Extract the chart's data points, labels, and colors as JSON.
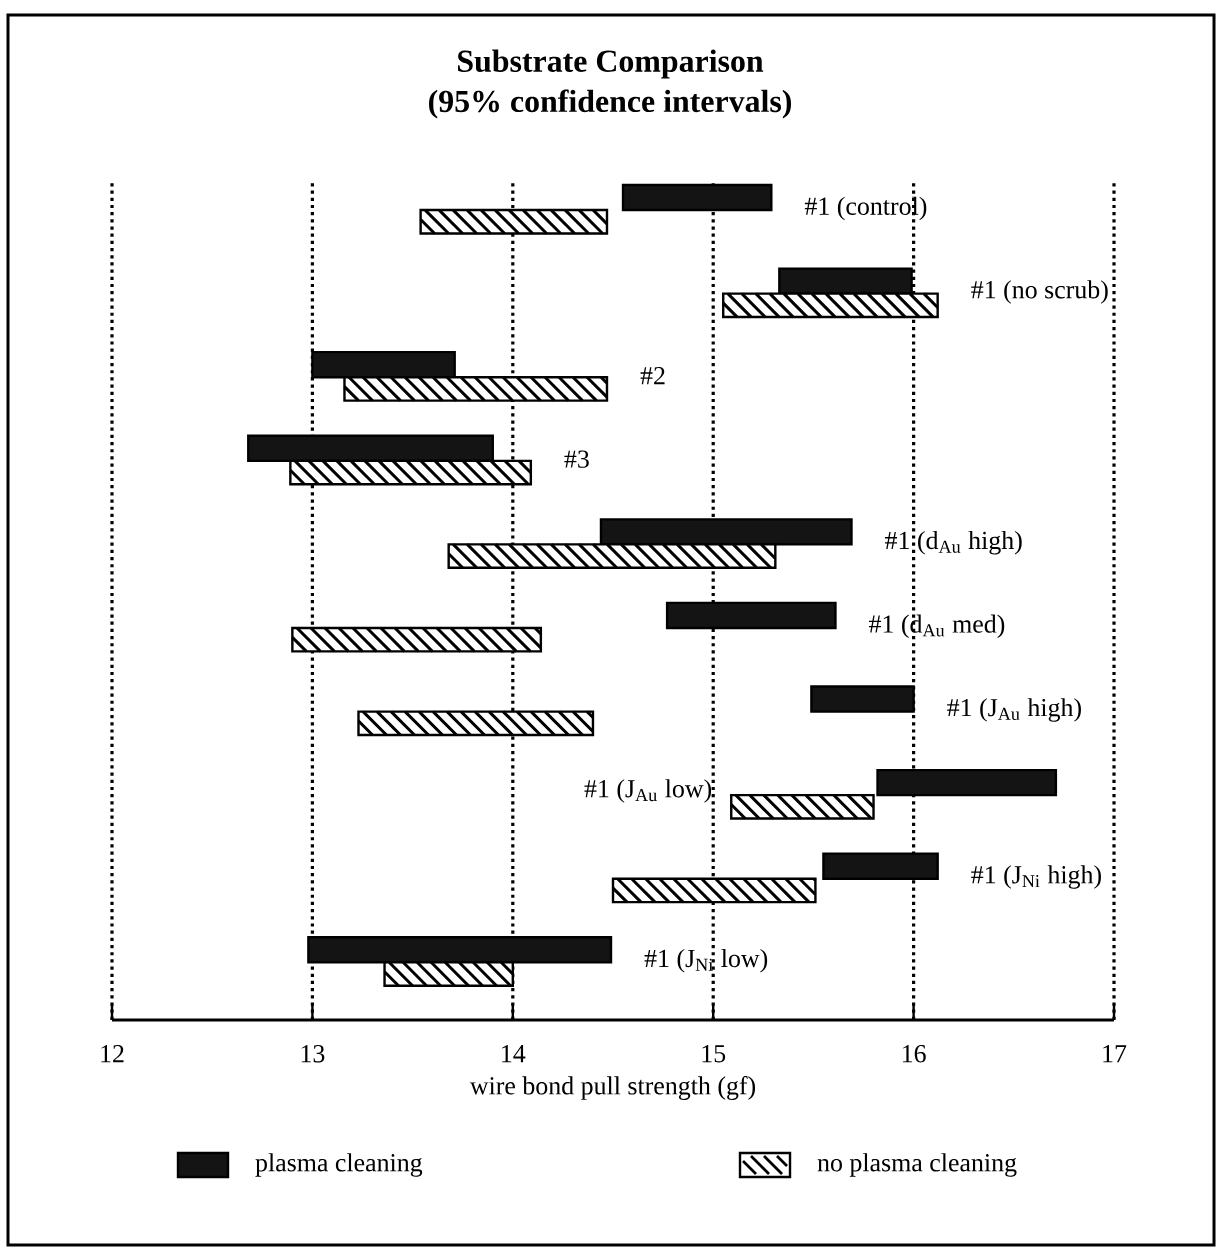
{
  "chart_data": {
    "type": "bar",
    "orientation": "horizontal",
    "title": "Substrate Comparison",
    "subtitle": "(95% confidence intervals)",
    "xlabel": "wire bond pull strength (gf)",
    "categories": [
      "#1 (control)",
      "#1 (no scrub)",
      "#2",
      "#3",
      "#1 (d$_{Au}$ high)",
      "#1 (d$_{Au}$ med)",
      "#1 (J$_{Au}$ high)",
      "#1 (J$_{Au}$ low)",
      "#1 (J$_{Ni}$ high)",
      "#1 (J$_{Ni}$ low)"
    ],
    "series": [
      {
        "name": "plasma cleaning",
        "color": "#141414",
        "base": [
          14.55,
          15.33,
          13.0,
          12.68,
          14.44,
          14.77,
          15.49,
          15.82,
          15.55,
          12.98
        ],
        "values": [
          0.74,
          0.66,
          0.71,
          1.22,
          1.25,
          0.84,
          0.51,
          0.89,
          0.57,
          1.51
        ]
      },
      {
        "name": "no plasma cleaning",
        "color": "#ffffff",
        "base": [
          13.54,
          15.05,
          13.16,
          12.89,
          13.68,
          12.9,
          13.23,
          15.09,
          14.5,
          13.36
        ],
        "values": [
          0.93,
          1.07,
          1.31,
          1.2,
          1.63,
          1.24,
          1.17,
          0.71,
          1.01,
          0.64
        ]
      }
    ],
    "xlim": [
      12,
      17
    ],
    "xticks": [
      12,
      13,
      14,
      15,
      16,
      17
    ],
    "grid": "x",
    "legend": "bottom"
  }
}
